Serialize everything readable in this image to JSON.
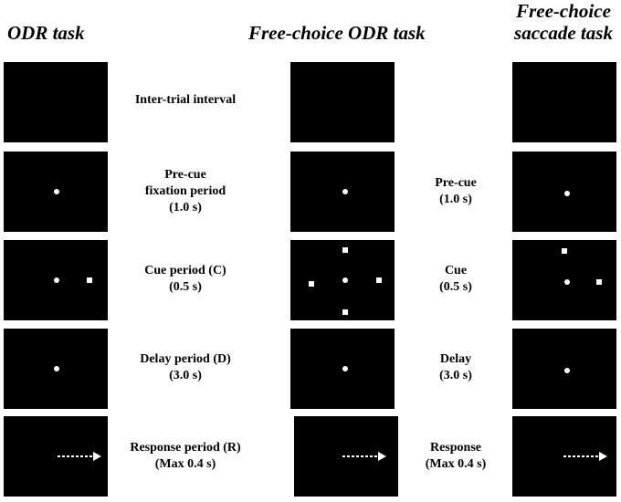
{
  "headers": {
    "odr": "ODR task",
    "free_odr": "Free-choice ODR task",
    "free_saccade_line1": "Free-choice",
    "free_saccade_line2": "saccade task"
  },
  "labels": {
    "iti": "Inter-trial interval",
    "precue_l1": "Pre-cue",
    "precue_l2": "fixation period",
    "precue_l3": "(1.0 s)",
    "cue_l1": "Cue period (C)",
    "cue_l2": "(0.5 s)",
    "delay_l1": "Delay period (D)",
    "delay_l2": "(3.0 s)",
    "response_l1": "Response period (R)",
    "response_l2": "(Max 0.4 s)"
  },
  "side_labels": {
    "precue_l1": "Pre-cue",
    "precue_l2": "(1.0 s)",
    "cue_l1": "Cue",
    "cue_l2": "(0.5 s)",
    "delay_l1": "Delay",
    "delay_l2": "(3.0 s)",
    "response_l1": "Response",
    "response_l2": "(Max 0.4 s)"
  },
  "colors": {
    "screen": "#000000",
    "stimulus": "#ffffff",
    "text": "#000000"
  }
}
